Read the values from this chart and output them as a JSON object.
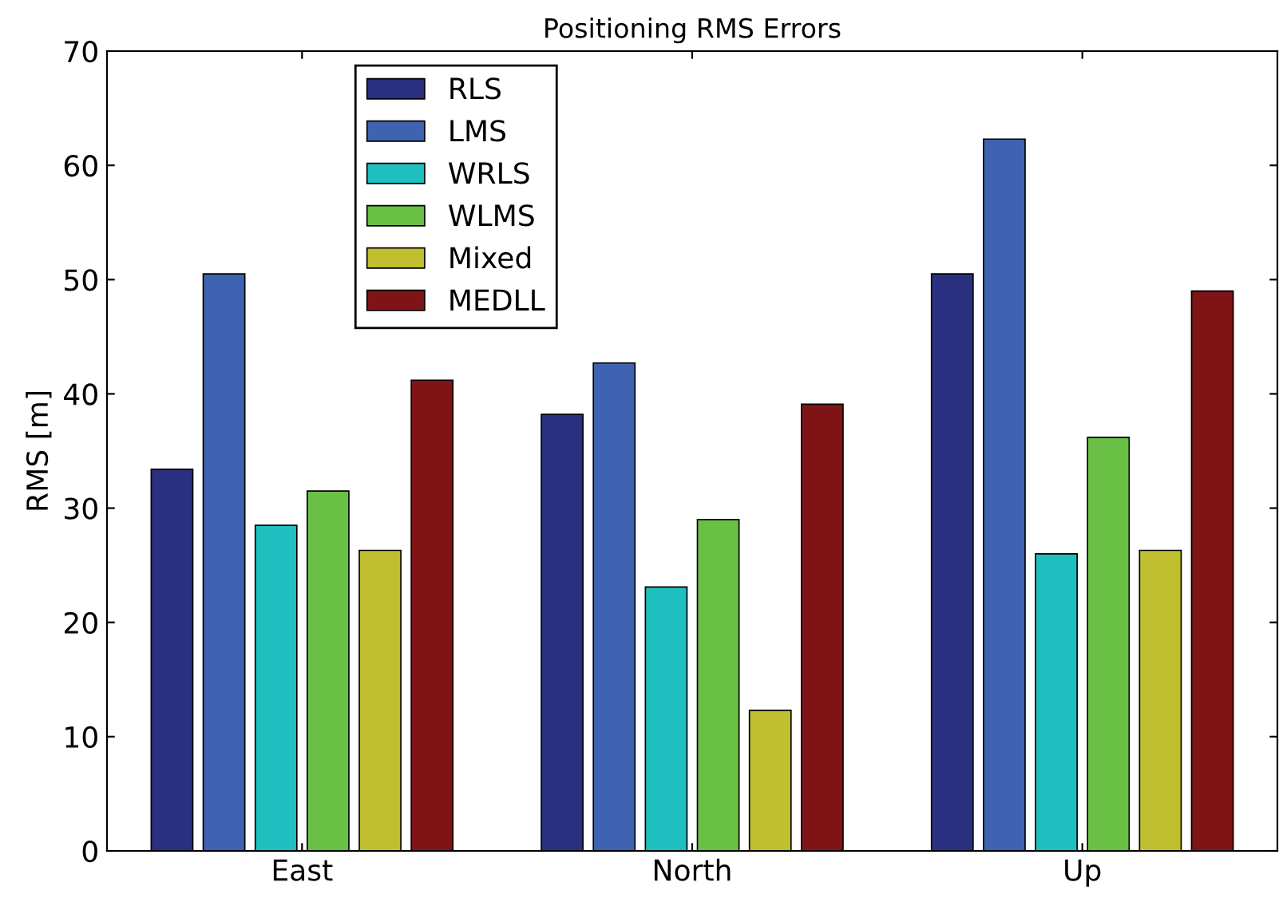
{
  "chart_data": {
    "type": "bar",
    "title": "Positioning RMS Errors",
    "ylabel": "RMS [m]",
    "categories": [
      "East",
      "North",
      "Up"
    ],
    "series": [
      {
        "name": "RLS",
        "color": "#2b2f7f",
        "values": [
          33.4,
          38.2,
          50.5
        ]
      },
      {
        "name": "LMS",
        "color": "#3f63b0",
        "values": [
          50.5,
          42.7,
          62.3
        ]
      },
      {
        "name": "WRLS",
        "color": "#1fbfbf",
        "values": [
          28.5,
          23.1,
          26.0
        ]
      },
      {
        "name": "WLMS",
        "color": "#6abf45",
        "values": [
          31.5,
          29.0,
          36.2
        ]
      },
      {
        "name": "Mixed",
        "color": "#bfbf30",
        "values": [
          26.3,
          12.3,
          26.3
        ]
      },
      {
        "name": "MEDLL",
        "color": "#7f1416",
        "values": [
          41.2,
          39.1,
          49.0
        ]
      }
    ],
    "ylim": [
      0,
      70
    ],
    "yticks": [
      0,
      10,
      20,
      30,
      40,
      50,
      60,
      70
    ],
    "grid": false,
    "legend": "top left"
  }
}
